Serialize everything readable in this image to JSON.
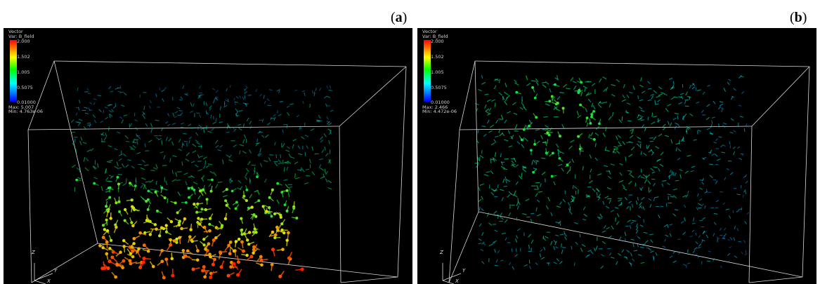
{
  "panels": [
    {
      "label_open": "(",
      "label_letter": "a",
      "label_close": ")",
      "legend": {
        "title": "Vector",
        "var": "Var: B_field",
        "ticks": [
          "2.000",
          "1.502",
          "1.005",
          "0.5075",
          "0.01000"
        ],
        "max": "Max: 5.007",
        "min": "Min: 4.763e-06"
      },
      "axes": {
        "z": "Z",
        "y": "Y",
        "x": "X"
      }
    },
    {
      "label_open": "(",
      "label_letter": "b",
      "label_close": ")",
      "legend": {
        "title": "Vector",
        "var": "Var: B_field",
        "ticks": [
          "2.000",
          "1.502",
          "1.005",
          "0.5075",
          "0.01000"
        ],
        "max": "Max: 2.466",
        "min": "Min: 4.472e-06"
      },
      "axes": {
        "z": "Z",
        "y": "Y",
        "x": "X"
      }
    }
  ]
}
